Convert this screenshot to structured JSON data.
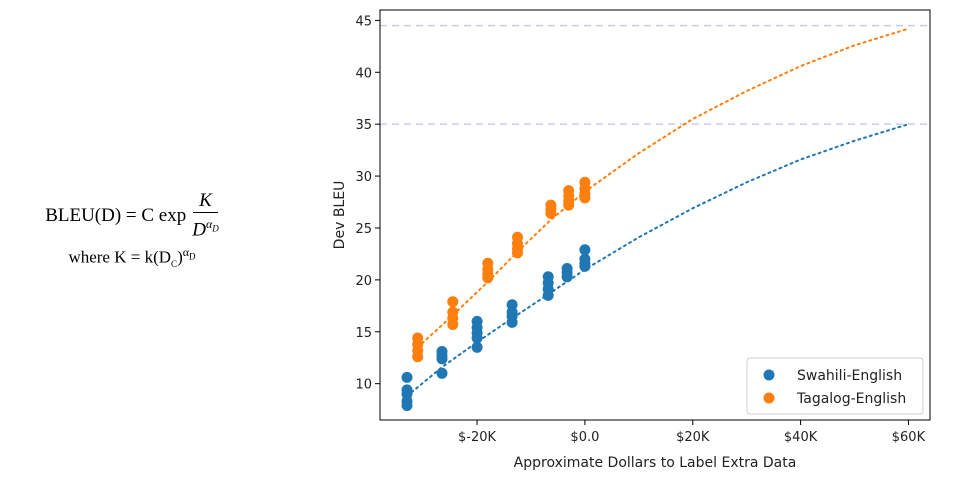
{
  "formula": {
    "line1_lhs": "BLEU(D) = C exp",
    "numerator": "K",
    "denominator": "D",
    "denominator_exp": "α",
    "denominator_exp_sub": "D",
    "line2": "where K = k(D",
    "line2_sub": "C",
    "line2_tail": ")",
    "line2_exp": "α",
    "line2_exp_sub": "D"
  },
  "chart_data": {
    "type": "scatter",
    "xlabel": "Approximate Dollars to Label Extra Data",
    "ylabel": "Dev BLEU",
    "xlim": [
      -38000,
      64000
    ],
    "ylim": [
      6.5,
      46
    ],
    "xticks": [
      -20000,
      0,
      20000,
      40000,
      60000
    ],
    "xtick_labels": [
      "$-20K",
      "$0.0",
      "$20K",
      "$40K",
      "$60K"
    ],
    "yticks": [
      10,
      15,
      20,
      25,
      30,
      35,
      40,
      45
    ],
    "ytick_labels": [
      "10",
      "15",
      "20",
      "25",
      "30",
      "35",
      "40",
      "45"
    ],
    "legend_position": "bottom-right",
    "hlines": [
      {
        "y": 44.5,
        "color": "#c9c9ef"
      },
      {
        "y": 35,
        "color": "#c9c9ef"
      }
    ],
    "series": [
      {
        "name": "Swahili-English",
        "color": "#1f77b4",
        "points": [
          [
            -33000,
            10.6
          ],
          [
            -33000,
            9.4
          ],
          [
            -33000,
            9.0
          ],
          [
            -33000,
            8.3
          ],
          [
            -33000,
            7.9
          ],
          [
            -26500,
            13.1
          ],
          [
            -26500,
            12.7
          ],
          [
            -26500,
            12.4
          ],
          [
            -26500,
            11.0
          ],
          [
            -20000,
            16.0
          ],
          [
            -20000,
            15.4
          ],
          [
            -20000,
            14.9
          ],
          [
            -20000,
            14.4
          ],
          [
            -20000,
            13.5
          ],
          [
            -13500,
            17.6
          ],
          [
            -13500,
            16.9
          ],
          [
            -13500,
            16.5
          ],
          [
            -13500,
            15.9
          ],
          [
            -6800,
            20.3
          ],
          [
            -6800,
            19.7
          ],
          [
            -6800,
            19.1
          ],
          [
            -6800,
            18.5
          ],
          [
            -3300,
            21.1
          ],
          [
            -3300,
            20.7
          ],
          [
            -3300,
            20.3
          ],
          [
            0,
            22.9
          ],
          [
            0,
            22.0
          ],
          [
            0,
            21.6
          ],
          [
            0,
            21.3
          ]
        ],
        "fit": [
          [
            -33000,
            8.8
          ],
          [
            -26500,
            11.6
          ],
          [
            -20000,
            14.0
          ],
          [
            -13500,
            16.3
          ],
          [
            -6800,
            18.6
          ],
          [
            0,
            21.0
          ],
          [
            10000,
            24.1
          ],
          [
            20000,
            26.9
          ],
          [
            30000,
            29.4
          ],
          [
            40000,
            31.6
          ],
          [
            50000,
            33.4
          ],
          [
            60000,
            35.0
          ]
        ]
      },
      {
        "name": "Tagalog-English",
        "color": "#ff7f0e",
        "points": [
          [
            -31000,
            14.4
          ],
          [
            -31000,
            13.8
          ],
          [
            -31000,
            13.2
          ],
          [
            -31000,
            12.6
          ],
          [
            -24500,
            17.9
          ],
          [
            -24500,
            16.9
          ],
          [
            -24500,
            16.3
          ],
          [
            -24500,
            15.7
          ],
          [
            -18000,
            21.6
          ],
          [
            -18000,
            21.0
          ],
          [
            -18000,
            20.6
          ],
          [
            -18000,
            20.2
          ],
          [
            -12500,
            24.1
          ],
          [
            -12500,
            23.5
          ],
          [
            -12500,
            23.0
          ],
          [
            -12500,
            22.6
          ],
          [
            -6300,
            27.2
          ],
          [
            -6300,
            26.8
          ],
          [
            -6300,
            26.4
          ],
          [
            -3000,
            28.6
          ],
          [
            -3000,
            28.1
          ],
          [
            -3000,
            27.6
          ],
          [
            -3000,
            27.2
          ],
          [
            0,
            29.4
          ],
          [
            0,
            28.8
          ],
          [
            0,
            28.3
          ],
          [
            0,
            27.9
          ]
        ],
        "fit": [
          [
            -31000,
            13.5
          ],
          [
            -24500,
            16.6
          ],
          [
            -18000,
            19.8
          ],
          [
            -12500,
            22.7
          ],
          [
            -6300,
            25.8
          ],
          [
            0,
            28.5
          ],
          [
            10000,
            32.2
          ],
          [
            20000,
            35.5
          ],
          [
            30000,
            38.2
          ],
          [
            40000,
            40.6
          ],
          [
            50000,
            42.6
          ],
          [
            60000,
            44.2
          ]
        ]
      }
    ]
  }
}
